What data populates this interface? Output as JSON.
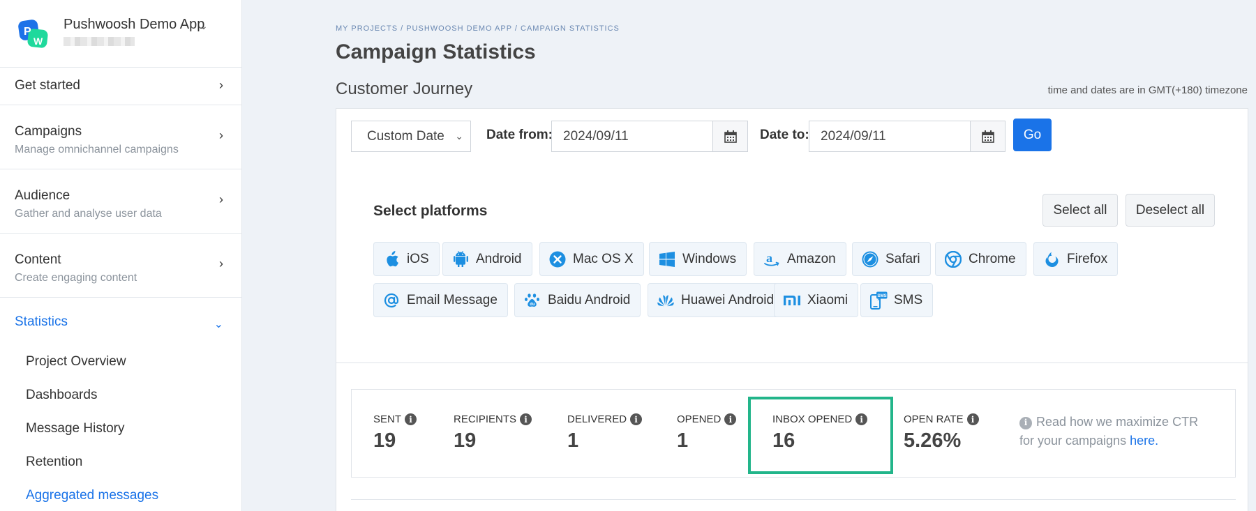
{
  "app": {
    "name": "Pushwoosh Demo App"
  },
  "sidebar": {
    "items": [
      {
        "title": "Get started"
      },
      {
        "title": "Campaigns",
        "desc": "Manage omnichannel campaigns"
      },
      {
        "title": "Audience",
        "desc": "Gather and analyse user data"
      },
      {
        "title": "Content",
        "desc": "Create engaging content"
      }
    ],
    "statistics": {
      "title": "Statistics",
      "sub": [
        "Project Overview",
        "Dashboards",
        "Message History",
        "Retention",
        "Aggregated messages"
      ]
    }
  },
  "breadcrumb": "MY PROJECTS / PUSHWOOSH DEMO APP / CAMPAIGN STATISTICS",
  "page_title": "Campaign Statistics",
  "section_title": "Customer Journey",
  "timezone_note": "time and dates are in GMT(+180) timezone",
  "filter": {
    "date_mode": "Custom Date",
    "date_from_label": "Date from:",
    "date_from": "2024/09/11",
    "date_to_label": "Date to:",
    "date_to": "2024/09/11",
    "go": "Go"
  },
  "platforms": {
    "title": "Select platforms",
    "select_all": "Select all",
    "deselect_all": "Deselect all",
    "list": [
      "iOS",
      "Android",
      "Mac OS X",
      "Windows",
      "Amazon",
      "Safari",
      "Chrome",
      "Firefox",
      "Email Message",
      "Baidu Android",
      "Huawei Android",
      "Xiaomi",
      "SMS"
    ]
  },
  "stats": [
    {
      "label": "SENT",
      "value": "19"
    },
    {
      "label": "RECIPIENTS",
      "value": "19"
    },
    {
      "label": "DELIVERED",
      "value": "1"
    },
    {
      "label": "OPENED",
      "value": "1"
    },
    {
      "label": "INBOX OPENED",
      "value": "16"
    },
    {
      "label": "OPEN RATE",
      "value": "5.26%"
    }
  ],
  "ctr": {
    "text": "Read how we maximize CTR for your campaigns ",
    "link": "here."
  },
  "colors": {
    "accent": "#1a73e8",
    "highlight": "#22b58a",
    "chip_icon": "#1d8fe1"
  },
  "icons": {
    "ios": "apple-icon",
    "android": "android-icon",
    "macos": "x-circle-icon",
    "windows": "windows-icon",
    "amazon": "amazon-icon",
    "safari": "compass-icon",
    "chrome": "chrome-icon",
    "firefox": "firefox-icon",
    "email": "at-icon",
    "baidu": "paw-icon",
    "huawei": "huawei-icon",
    "xiaomi": "mi-icon",
    "sms": "sms-icon"
  }
}
